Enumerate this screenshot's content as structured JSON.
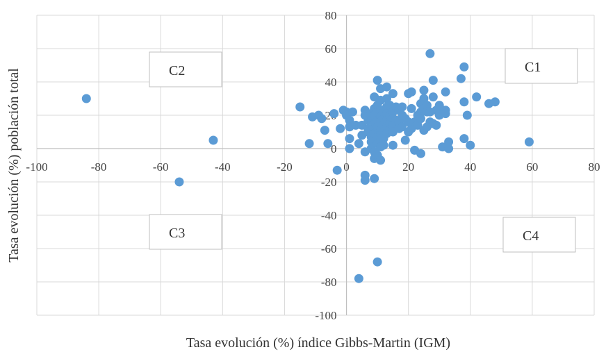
{
  "chart_data": {
    "type": "scatter",
    "title": "",
    "xlabel": "Tasa evolución (%) índice Gibbs-Martin (IGM)",
    "ylabel": "Tasa evolución (%) población total",
    "xlim": [
      -100,
      80
    ],
    "ylim": [
      -100,
      80
    ],
    "x_ticks": [
      -100,
      -80,
      -60,
      -40,
      -20,
      0,
      20,
      40,
      60,
      80
    ],
    "y_ticks": [
      -100,
      -80,
      -60,
      -40,
      -20,
      0,
      20,
      40,
      60,
      80
    ],
    "grid": true,
    "point_color": "#5b9bd5",
    "quadrant_labels": [
      {
        "label": "C1",
        "quadrant": "top-right"
      },
      {
        "label": "C2",
        "quadrant": "top-left"
      },
      {
        "label": "C3",
        "quadrant": "bottom-left"
      },
      {
        "label": "C4",
        "quadrant": "bottom-right"
      }
    ],
    "points": [
      [
        -84,
        30
      ],
      [
        -54,
        -20
      ],
      [
        -43,
        5
      ],
      [
        -15,
        25
      ],
      [
        -12,
        3
      ],
      [
        -11,
        19
      ],
      [
        -9,
        20
      ],
      [
        -8,
        18
      ],
      [
        -7,
        11
      ],
      [
        -6,
        3
      ],
      [
        -4,
        21
      ],
      [
        -3,
        -13
      ],
      [
        -2,
        12
      ],
      [
        -1,
        23
      ],
      [
        0,
        22
      ],
      [
        0,
        20
      ],
      [
        1,
        17
      ],
      [
        1,
        13
      ],
      [
        1,
        6
      ],
      [
        1,
        0
      ],
      [
        2,
        22
      ],
      [
        3,
        14
      ],
      [
        4,
        3
      ],
      [
        5,
        14
      ],
      [
        5,
        8
      ],
      [
        6,
        23
      ],
      [
        6,
        20
      ],
      [
        6,
        -2
      ],
      [
        6,
        -16
      ],
      [
        6,
        -19
      ],
      [
        7,
        17
      ],
      [
        7,
        12
      ],
      [
        7,
        10
      ],
      [
        8,
        7
      ],
      [
        8,
        4
      ],
      [
        8,
        0
      ],
      [
        8,
        21
      ],
      [
        8,
        17
      ],
      [
        9,
        24
      ],
      [
        9,
        31
      ],
      [
        9,
        20
      ],
      [
        9,
        15
      ],
      [
        9,
        12
      ],
      [
        9,
        9
      ],
      [
        9,
        -2
      ],
      [
        9,
        -6
      ],
      [
        9,
        -18
      ],
      [
        10,
        41
      ],
      [
        10,
        26
      ],
      [
        10,
        22
      ],
      [
        10,
        17
      ],
      [
        10,
        13
      ],
      [
        10,
        7
      ],
      [
        10,
        3
      ],
      [
        10,
        -4
      ],
      [
        10,
        -68
      ],
      [
        11,
        36
      ],
      [
        11,
        29
      ],
      [
        11,
        23
      ],
      [
        11,
        19
      ],
      [
        11,
        16
      ],
      [
        11,
        11
      ],
      [
        11,
        8
      ],
      [
        11,
        5
      ],
      [
        11,
        1
      ],
      [
        11,
        -7
      ],
      [
        12,
        22
      ],
      [
        12,
        18
      ],
      [
        12,
        14
      ],
      [
        12,
        10
      ],
      [
        12,
        6
      ],
      [
        12,
        2
      ],
      [
        13,
        37
      ],
      [
        13,
        30
      ],
      [
        13,
        25
      ],
      [
        13,
        21
      ],
      [
        13,
        17
      ],
      [
        13,
        13
      ],
      [
        13,
        9
      ],
      [
        14,
        20
      ],
      [
        14,
        15
      ],
      [
        14,
        11
      ],
      [
        14,
        26
      ],
      [
        15,
        33
      ],
      [
        15,
        22
      ],
      [
        15,
        18
      ],
      [
        15,
        14
      ],
      [
        15,
        10
      ],
      [
        15,
        2
      ],
      [
        16,
        25
      ],
      [
        16,
        17
      ],
      [
        17,
        12
      ],
      [
        17,
        23
      ],
      [
        17,
        16
      ],
      [
        18,
        25
      ],
      [
        18,
        13
      ],
      [
        19,
        5
      ],
      [
        19,
        18
      ],
      [
        20,
        33
      ],
      [
        20,
        10
      ],
      [
        21,
        34
      ],
      [
        21,
        12
      ],
      [
        21,
        24
      ],
      [
        22,
        16
      ],
      [
        22,
        -1
      ],
      [
        23,
        20
      ],
      [
        23,
        14
      ],
      [
        24,
        -3
      ],
      [
        24,
        27
      ],
      [
        24,
        22
      ],
      [
        24,
        18
      ],
      [
        25,
        35
      ],
      [
        25,
        30
      ],
      [
        25,
        24
      ],
      [
        25,
        11
      ],
      [
        26,
        26
      ],
      [
        26,
        22
      ],
      [
        27,
        57
      ],
      [
        27,
        16
      ],
      [
        28,
        41
      ],
      [
        28,
        31
      ],
      [
        28,
        15
      ],
      [
        29,
        14
      ],
      [
        29,
        23
      ],
      [
        30,
        22
      ],
      [
        30,
        20
      ],
      [
        31,
        1
      ],
      [
        32,
        34
      ],
      [
        32,
        23
      ],
      [
        33,
        4
      ],
      [
        33,
        0
      ],
      [
        37,
        42
      ],
      [
        38,
        49
      ],
      [
        38,
        6
      ],
      [
        39,
        20
      ],
      [
        40,
        2
      ],
      [
        42,
        31
      ],
      [
        46,
        27
      ],
      [
        48,
        28
      ],
      [
        59,
        4
      ],
      [
        4,
        -78
      ],
      [
        38,
        28
      ],
      [
        27,
        22
      ],
      [
        30,
        26
      ],
      [
        18,
        20
      ],
      [
        26,
        13
      ],
      [
        20,
        16
      ],
      [
        32,
        21
      ]
    ]
  }
}
